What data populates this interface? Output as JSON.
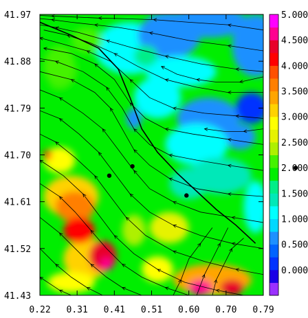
{
  "chart_data": {
    "type": "heatmap",
    "title": "",
    "xlabel": "",
    "ylabel": "",
    "x_ticks": [
      "0.22",
      "0.31",
      "0.41",
      "0.51",
      "0.60",
      "0.70",
      "0.79"
    ],
    "y_ticks": [
      "41.97",
      "41.88",
      "41.79",
      "41.70",
      "41.61",
      "41.52",
      "41.43"
    ],
    "xlim": [
      0.22,
      0.79
    ],
    "ylim": [
      41.43,
      41.97
    ],
    "colorbar": {
      "tick_labels": [
        "0.000",
        "0.500",
        "1.000",
        "1.500",
        "2.000",
        "2.500",
        "3.000",
        "3.500",
        "4.000",
        "4.500",
        "5.000"
      ],
      "levels": [
        {
          "value": -0.25,
          "color": "#9b30ff"
        },
        {
          "value": 0.0,
          "color": "#1a00e6"
        },
        {
          "value": 0.25,
          "color": "#0033ff"
        },
        {
          "value": 0.5,
          "color": "#0064ff"
        },
        {
          "value": 0.75,
          "color": "#1e90ff"
        },
        {
          "value": 1.0,
          "color": "#00d8ff"
        },
        {
          "value": 1.25,
          "color": "#00ffff"
        },
        {
          "value": 1.5,
          "color": "#00e8b8"
        },
        {
          "value": 1.75,
          "color": "#00ee88"
        },
        {
          "value": 2.0,
          "color": "#00ee00"
        },
        {
          "value": 2.25,
          "color": "#44f200"
        },
        {
          "value": 2.5,
          "color": "#aef000"
        },
        {
          "value": 2.75,
          "color": "#e6f200"
        },
        {
          "value": 3.0,
          "color": "#ffff00"
        },
        {
          "value": 3.25,
          "color": "#ffd200"
        },
        {
          "value": 3.5,
          "color": "#ffa500"
        },
        {
          "value": 3.75,
          "color": "#ff7f00"
        },
        {
          "value": 4.0,
          "color": "#ff5000"
        },
        {
          "value": 4.25,
          "color": "#ff0000"
        },
        {
          "value": 4.5,
          "color": "#e8002a"
        },
        {
          "value": 4.75,
          "color": "#ff0090"
        },
        {
          "value": 5.0,
          "color": "#ff00ff"
        }
      ]
    },
    "field_regions": [
      {
        "x": 0.45,
        "y": 41.905,
        "rx": 0.09,
        "ry": 0.05,
        "value": 1.3
      },
      {
        "x": 0.55,
        "y": 41.93,
        "rx": 0.08,
        "ry": 0.045,
        "value": 0.8
      },
      {
        "x": 0.65,
        "y": 41.955,
        "rx": 0.1,
        "ry": 0.03,
        "value": 0.65
      },
      {
        "x": 0.77,
        "y": 41.91,
        "rx": 0.06,
        "ry": 0.06,
        "value": 0.7
      },
      {
        "x": 0.58,
        "y": 41.86,
        "rx": 0.09,
        "ry": 0.03,
        "value": 1.35
      },
      {
        "x": 0.49,
        "y": 41.89,
        "rx": 0.03,
        "ry": 0.02,
        "value": 1.7
      },
      {
        "x": 0.52,
        "y": 41.81,
        "rx": 0.06,
        "ry": 0.04,
        "value": 1.2
      },
      {
        "x": 0.65,
        "y": 41.77,
        "rx": 0.08,
        "ry": 0.04,
        "value": 0.75
      },
      {
        "x": 0.76,
        "y": 41.79,
        "rx": 0.04,
        "ry": 0.03,
        "value": 0.2
      },
      {
        "x": 0.73,
        "y": 41.735,
        "rx": 0.04,
        "ry": 0.025,
        "value": 0.7
      },
      {
        "x": 0.62,
        "y": 41.72,
        "rx": 0.08,
        "ry": 0.04,
        "value": 1.2
      },
      {
        "x": 0.46,
        "y": 41.77,
        "rx": 0.02,
        "ry": 0.02,
        "value": 0.8
      },
      {
        "x": 0.68,
        "y": 41.66,
        "rx": 0.08,
        "ry": 0.035,
        "value": 1.5
      },
      {
        "x": 0.77,
        "y": 41.6,
        "rx": 0.03,
        "ry": 0.05,
        "value": 1.3
      },
      {
        "x": 0.6,
        "y": 41.645,
        "rx": 0.05,
        "ry": 0.03,
        "value": 1.6
      },
      {
        "x": 0.3,
        "y": 41.62,
        "rx": 0.07,
        "ry": 0.04,
        "value": 3.3
      },
      {
        "x": 0.31,
        "y": 41.6,
        "rx": 0.05,
        "ry": 0.03,
        "value": 3.8
      },
      {
        "x": 0.27,
        "y": 41.69,
        "rx": 0.04,
        "ry": 0.025,
        "value": 3.0
      },
      {
        "x": 0.24,
        "y": 41.7,
        "rx": 0.01,
        "ry": 0.01,
        "value": 4.3
      },
      {
        "x": 0.34,
        "y": 41.5,
        "rx": 0.06,
        "ry": 0.04,
        "value": 3.3
      },
      {
        "x": 0.32,
        "y": 41.555,
        "rx": 0.04,
        "ry": 0.025,
        "value": 4.3
      },
      {
        "x": 0.38,
        "y": 41.505,
        "rx": 0.035,
        "ry": 0.03,
        "value": 4.4
      },
      {
        "x": 0.39,
        "y": 41.49,
        "rx": 0.015,
        "ry": 0.012,
        "value": 4.8
      },
      {
        "x": 0.3,
        "y": 41.455,
        "rx": 0.06,
        "ry": 0.02,
        "value": 3.0
      },
      {
        "x": 0.52,
        "y": 41.48,
        "rx": 0.04,
        "ry": 0.025,
        "value": 3.0
      },
      {
        "x": 0.66,
        "y": 41.46,
        "rx": 0.1,
        "ry": 0.03,
        "value": 3.4
      },
      {
        "x": 0.63,
        "y": 41.445,
        "rx": 0.03,
        "ry": 0.015,
        "value": 4.7
      },
      {
        "x": 0.71,
        "y": 41.445,
        "rx": 0.03,
        "ry": 0.015,
        "value": 4.4
      },
      {
        "x": 0.55,
        "y": 41.56,
        "rx": 0.05,
        "ry": 0.03,
        "value": 2.7
      },
      {
        "x": 0.46,
        "y": 41.555,
        "rx": 0.03,
        "ry": 0.03,
        "value": 2.6
      },
      {
        "x": 0.3,
        "y": 41.81,
        "rx": 0.06,
        "ry": 0.06,
        "value": 2.1
      },
      {
        "x": 0.27,
        "y": 41.87,
        "rx": 0.04,
        "ry": 0.04,
        "value": 2.35
      },
      {
        "x": 0.34,
        "y": 41.92,
        "rx": 0.04,
        "ry": 0.025,
        "value": 2.2
      }
    ],
    "streamlines": [
      {
        "x": [
          0.79,
          0.7,
          0.6,
          0.51,
          0.43,
          0.37,
          0.31,
          0.25,
          0.22
        ],
        "y": [
          41.94,
          41.95,
          41.955,
          41.96,
          41.962,
          41.963,
          41.965,
          41.967,
          41.968
        ]
      },
      {
        "x": [
          0.79,
          0.7,
          0.6,
          0.5,
          0.42,
          0.36,
          0.3,
          0.25,
          0.22
        ],
        "y": [
          41.9,
          41.91,
          41.92,
          41.935,
          41.945,
          41.95,
          41.955,
          41.96,
          41.962
        ]
      },
      {
        "x": [
          0.79,
          0.72,
          0.63,
          0.54,
          0.46,
          0.39,
          0.32,
          0.26,
          0.22
        ],
        "y": [
          41.86,
          41.865,
          41.875,
          41.89,
          41.905,
          41.92,
          41.935,
          41.945,
          41.95
        ]
      },
      {
        "x": [
          0.79,
          0.7,
          0.62,
          0.54,
          0.47,
          0.41,
          0.35,
          0.29,
          0.23
        ],
        "y": [
          41.82,
          41.82,
          41.83,
          41.845,
          41.87,
          41.895,
          41.915,
          41.93,
          41.94
        ]
      },
      {
        "x": [
          0.79,
          0.72,
          0.64,
          0.56,
          0.5,
          0.45,
          0.4,
          0.34,
          0.27,
          0.22
        ],
        "y": [
          41.77,
          41.775,
          41.78,
          41.79,
          41.81,
          41.845,
          41.88,
          41.9,
          41.915,
          41.925
        ]
      },
      {
        "x": [
          0.79,
          0.7,
          0.61,
          0.54,
          0.49,
          0.45,
          0.41,
          0.36,
          0.3,
          0.23
        ],
        "y": [
          41.72,
          41.73,
          41.74,
          41.75,
          41.77,
          41.8,
          41.845,
          41.875,
          41.895,
          41.905
        ]
      },
      {
        "x": [
          0.79,
          0.7,
          0.62,
          0.55,
          0.5,
          0.46,
          0.43,
          0.39,
          0.33,
          0.26,
          0.22
        ],
        "y": [
          41.67,
          41.68,
          41.69,
          41.7,
          41.72,
          41.75,
          41.79,
          41.83,
          41.86,
          41.88,
          41.885
        ]
      },
      {
        "x": [
          0.79,
          0.7,
          0.62,
          0.55,
          0.5,
          0.46,
          0.43,
          0.4,
          0.36,
          0.3,
          0.22
        ],
        "y": [
          41.62,
          41.625,
          41.635,
          41.655,
          41.68,
          41.71,
          41.75,
          41.79,
          41.82,
          41.845,
          41.86
        ]
      },
      {
        "x": [
          0.79,
          0.71,
          0.63,
          0.56,
          0.5,
          0.46,
          0.42,
          0.38,
          0.33,
          0.27,
          0.22
        ],
        "y": [
          41.57,
          41.58,
          41.59,
          41.61,
          41.635,
          41.67,
          41.71,
          41.75,
          41.78,
          41.81,
          41.825
        ]
      },
      {
        "x": [
          0.79,
          0.71,
          0.63,
          0.56,
          0.5,
          0.45,
          0.41,
          0.37,
          0.32,
          0.27,
          0.22
        ],
        "y": [
          41.52,
          41.53,
          41.545,
          41.565,
          41.59,
          41.625,
          41.665,
          41.705,
          41.74,
          41.77,
          41.785
        ]
      },
      {
        "x": [
          0.79,
          0.72,
          0.64,
          0.56,
          0.49,
          0.44,
          0.4,
          0.36,
          0.31,
          0.26,
          0.22
        ],
        "y": [
          41.47,
          41.48,
          41.495,
          41.515,
          41.545,
          41.58,
          41.62,
          41.66,
          41.695,
          41.725,
          41.74
        ]
      },
      {
        "x": [
          0.74,
          0.67,
          0.59,
          0.52,
          0.46,
          0.41,
          0.37,
          0.33,
          0.28,
          0.22
        ],
        "y": [
          41.43,
          41.44,
          41.455,
          41.48,
          41.51,
          41.545,
          41.585,
          41.625,
          41.66,
          41.69
        ]
      },
      {
        "x": [
          0.6,
          0.54,
          0.48,
          0.43,
          0.39,
          0.35,
          0.31,
          0.27,
          0.22
        ],
        "y": [
          41.43,
          41.445,
          41.465,
          41.49,
          41.52,
          41.555,
          41.59,
          41.62,
          41.645
        ]
      },
      {
        "x": [
          0.48,
          0.43,
          0.39,
          0.35,
          0.31,
          0.27,
          0.22
        ],
        "y": [
          41.43,
          41.445,
          41.465,
          41.49,
          41.52,
          41.55,
          41.58
        ]
      },
      {
        "x": [
          0.38,
          0.34,
          0.3,
          0.26,
          0.22
        ],
        "y": [
          41.43,
          41.445,
          41.465,
          41.49,
          41.52
        ]
      },
      {
        "x": [
          0.3,
          0.27,
          0.24,
          0.22
        ],
        "y": [
          41.43,
          41.44,
          41.455,
          41.465
        ]
      },
      {
        "x": [
          0.79,
          0.73,
          0.67,
          0.62,
          0.57,
          0.53
        ],
        "y": [
          41.85,
          41.84,
          41.84,
          41.845,
          41.855,
          41.87
        ]
      },
      {
        "x": [
          0.79,
          0.74,
          0.69,
          0.64
        ],
        "y": [
          41.75,
          41.745,
          41.745,
          41.75
        ]
      },
      {
        "x": [
          0.62,
          0.64,
          0.66,
          0.68,
          0.7
        ],
        "y": [
          41.43,
          41.47,
          41.5,
          41.53,
          41.56
        ]
      },
      {
        "x": [
          0.66,
          0.67,
          0.69,
          0.71,
          0.74
        ],
        "y": [
          41.43,
          41.46,
          41.49,
          41.52,
          41.54
        ]
      },
      {
        "x": [
          0.56,
          0.58,
          0.6,
          0.63,
          0.66
        ],
        "y": [
          41.43,
          41.46,
          41.5,
          41.53,
          41.56
        ]
      }
    ],
    "ridge_line": {
      "x": [
        0.22,
        0.3,
        0.37,
        0.42,
        0.45,
        0.48,
        0.52,
        0.57,
        0.62,
        0.67,
        0.72,
        0.77
      ],
      "y": [
        41.955,
        41.93,
        41.905,
        41.865,
        41.81,
        41.75,
        41.705,
        41.665,
        41.63,
        41.595,
        41.565,
        41.53
      ]
    },
    "points": [
      {
        "x": 0.397,
        "y": 41.66
      },
      {
        "x": 0.456,
        "y": 41.678
      },
      {
        "x": 0.594,
        "y": 41.622
      }
    ],
    "extra_point": {
      "x": 0.8,
      "y": 41.675
    }
  }
}
